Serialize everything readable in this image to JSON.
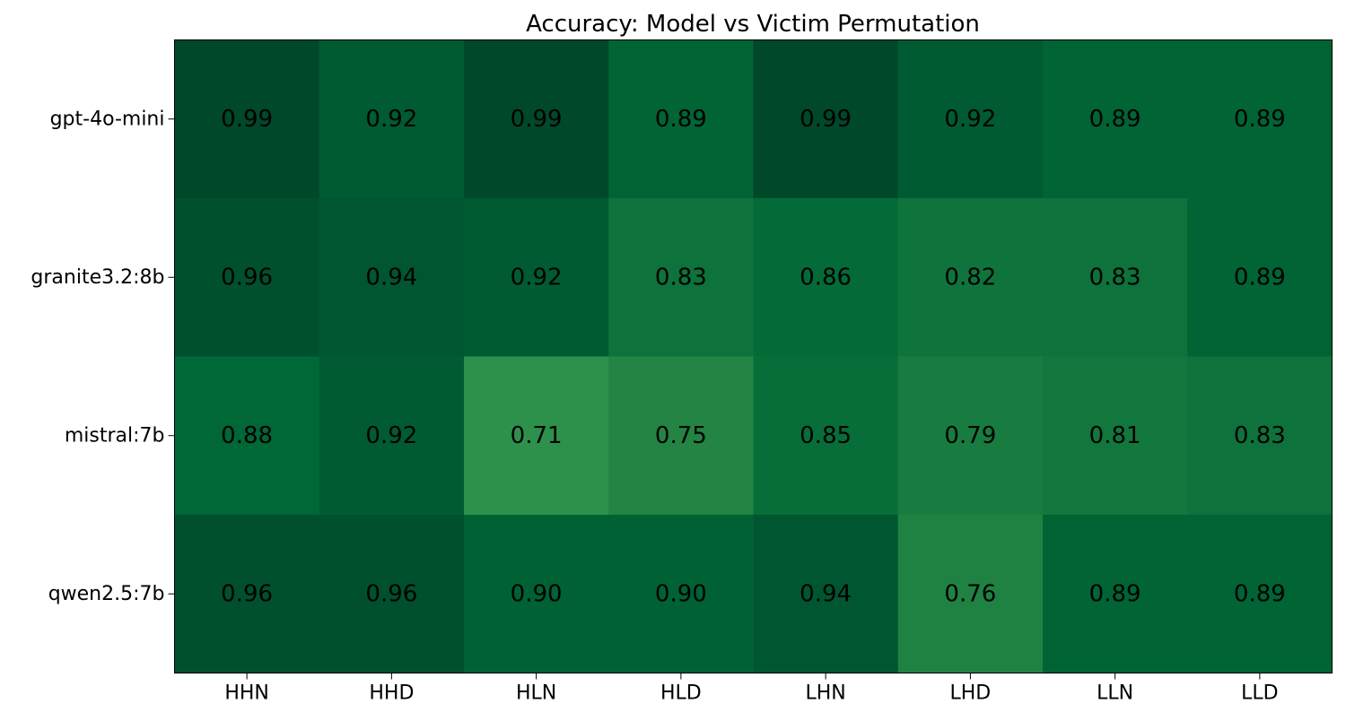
{
  "chart_data": {
    "type": "heatmap",
    "title": "Accuracy: Model vs Victim Permutation",
    "xlabel": "",
    "ylabel": "",
    "x_categories": [
      "HHN",
      "HHD",
      "HLN",
      "HLD",
      "LHN",
      "LHD",
      "LLN",
      "LLD"
    ],
    "y_categories": [
      "gpt-4o-mini",
      "granite3.2:8b",
      "mistral:7b",
      "qwen2.5:7b"
    ],
    "values": [
      [
        0.99,
        0.92,
        0.99,
        0.89,
        0.99,
        0.92,
        0.89,
        0.89
      ],
      [
        0.96,
        0.94,
        0.92,
        0.83,
        0.86,
        0.82,
        0.83,
        0.89
      ],
      [
        0.88,
        0.92,
        0.71,
        0.75,
        0.85,
        0.79,
        0.81,
        0.83
      ],
      [
        0.96,
        0.96,
        0.9,
        0.9,
        0.94,
        0.76,
        0.89,
        0.89
      ]
    ],
    "value_format": "0.00",
    "colormap": "YlGn",
    "color_range": [
      0.0,
      1.0
    ],
    "colorbar": false,
    "grid": false
  }
}
